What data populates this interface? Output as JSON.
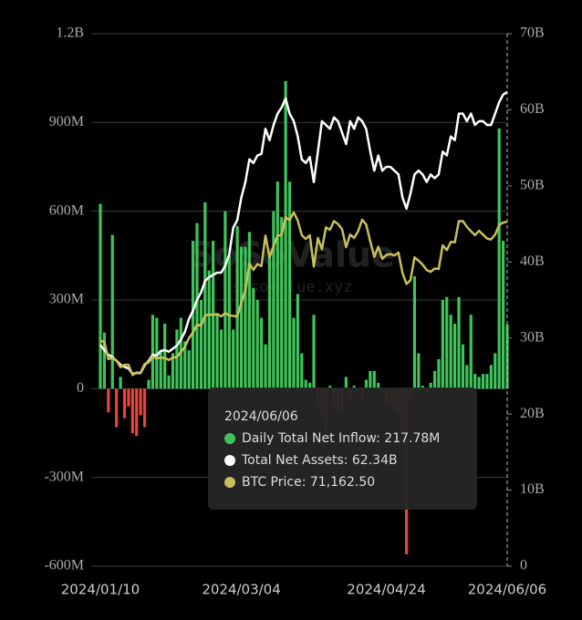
{
  "chart_data": {
    "type": "bar_line",
    "categories": [
      "2024/01/10",
      null,
      null,
      null,
      null,
      null,
      null,
      null,
      null,
      null,
      null,
      null,
      null,
      null,
      null,
      null,
      null,
      null,
      null,
      null,
      null,
      null,
      null,
      null,
      null,
      null,
      null,
      null,
      null,
      null,
      null,
      null,
      null,
      null,
      null,
      "2024/03/04",
      null,
      null,
      null,
      null,
      null,
      null,
      null,
      null,
      null,
      null,
      null,
      null,
      null,
      null,
      null,
      null,
      null,
      null,
      null,
      null,
      null,
      null,
      null,
      null,
      null,
      null,
      null,
      null,
      null,
      null,
      null,
      null,
      null,
      null,
      null,
      "2024/04/24",
      null,
      null,
      null,
      null,
      null,
      null,
      null,
      null,
      null,
      null,
      null,
      null,
      null,
      null,
      null,
      null,
      null,
      null,
      null,
      null,
      null,
      null,
      null,
      null,
      null,
      null,
      null,
      null,
      null,
      "2024/06/06"
    ],
    "ylim": [
      -600,
      1200
    ],
    "yticks": [
      {
        "value": -600,
        "label": "-600M"
      },
      {
        "value": -300,
        "label": "-300M"
      },
      0,
      {
        "value": 300,
        "label": "300M"
      },
      {
        "value": 600,
        "label": "600M"
      },
      {
        "value": 900,
        "label": "900M"
      },
      {
        "value": 1200,
        "label": "1.2B"
      }
    ],
    "y2lim": [
      0,
      70
    ],
    "y2ticks": [
      0,
      {
        "value": 10,
        "label": "10B"
      },
      {
        "value": 20,
        "label": "20B"
      },
      {
        "value": 30,
        "label": "30B"
      },
      {
        "value": 40,
        "label": "40B"
      },
      {
        "value": 50,
        "label": "50B"
      },
      {
        "value": 60,
        "label": "60B"
      },
      {
        "value": 70,
        "label": "70B"
      }
    ],
    "y3lim": [
      0,
      110000
    ],
    "grid": true,
    "series": [
      {
        "name": "Daily Total Net Inflow",
        "type": "bar",
        "axis": "y",
        "color": "#3fc45b",
        "negative_color": "#e8453c",
        "values": [
          625,
          190,
          -80,
          520,
          -130,
          40,
          -100,
          -60,
          -150,
          -160,
          -90,
          -130,
          30,
          250,
          240,
          130,
          220,
          45,
          120,
          200,
          240,
          160,
          130,
          500,
          560,
          300,
          630,
          400,
          500,
          250,
          200,
          600,
          450,
          200,
          550,
          480,
          480,
          530,
          340,
          300,
          240,
          150,
          450,
          600,
          700,
          580,
          1040,
          700,
          240,
          320,
          120,
          30,
          20,
          250,
          -50,
          -100,
          -150,
          10,
          -60,
          -80,
          -70,
          40,
          -30,
          10,
          -20,
          -40,
          30,
          60,
          60,
          20,
          -20,
          -50,
          -40,
          -70,
          -80,
          -180,
          -560,
          -30,
          380,
          120,
          10,
          -20,
          20,
          60,
          100,
          300,
          310,
          250,
          220,
          310,
          150,
          80,
          250,
          50,
          40,
          50,
          50,
          80,
          120,
          880,
          500,
          217.78
        ]
      },
      {
        "name": "Total Net Assets",
        "type": "line",
        "axis": "y2",
        "color": "#ffffff",
        "values": [
          29.1,
          28.4,
          27.8,
          27.5,
          27,
          26.5,
          26.2,
          26,
          25.3,
          25.4,
          25.4,
          26.4,
          27,
          27.8,
          27.7,
          28.3,
          28.4,
          28.2,
          28.6,
          29,
          29.8,
          30.8,
          32.5,
          33.6,
          35,
          36,
          37.5,
          38,
          38.3,
          38.6,
          38.6,
          39.5,
          41,
          44.5,
          45.5,
          48.5,
          50.5,
          53.5,
          53,
          54,
          54.2,
          57.5,
          56,
          58,
          59.5,
          60.3,
          61.5,
          59.5,
          58.5,
          56.5,
          53.5,
          53,
          53.8,
          50.5,
          54.5,
          58.5,
          58,
          57.5,
          59,
          58.5,
          57,
          55.5,
          58.5,
          57.5,
          59,
          58.5,
          57.5,
          54.5,
          52,
          54,
          52,
          52.5,
          52.5,
          52,
          51.5,
          48.5,
          47,
          49,
          51.5,
          52,
          51.5,
          50.5,
          51.5,
          51,
          51.5,
          54.5,
          54,
          56.5,
          56,
          59.5,
          59.5,
          58.5,
          59.5,
          58,
          58.5,
          58.5,
          58,
          58,
          59.5,
          61,
          62,
          62.34
        ]
      },
      {
        "name": "BTC Price",
        "type": "line",
        "axis": "y3",
        "color": "#c8c05a",
        "values": [
          46600,
          46300,
          42800,
          43000,
          42500,
          41100,
          41600,
          41600,
          39500,
          40000,
          40000,
          41800,
          42100,
          43300,
          42900,
          43100,
          43000,
          42600,
          43100,
          43200,
          44300,
          45300,
          47100,
          48300,
          49900,
          49700,
          51800,
          52000,
          51900,
          52100,
          51600,
          52300,
          51800,
          51700,
          51600,
          54500,
          57000,
          62500,
          61200,
          62400,
          62000,
          68300,
          63800,
          66100,
          68300,
          68400,
          72100,
          71500,
          73100,
          71400,
          68400,
          67600,
          68400,
          61900,
          67800,
          65500,
          70000,
          69500,
          71300,
          70700,
          69600,
          65900,
          68500,
          67800,
          69200,
          71600,
          70600,
          67100,
          63900,
          66000,
          63500,
          64300,
          64500,
          64200,
          64800,
          60600,
          58300,
          59100,
          63800,
          63100,
          62300,
          61200,
          60800,
          61500,
          61400,
          66300,
          65300,
          67000,
          66900,
          71300,
          71300,
          70100,
          69200,
          68400,
          69300,
          68500,
          67700,
          67500,
          68500,
          70500,
          71000,
          71162.5
        ]
      }
    ],
    "tooltip": {
      "date": "2024/06/06",
      "rows": [
        "Daily Total Net Inflow: 217.78M",
        "Total Net Assets: 62.34B",
        "BTC Price: 71,162.50"
      ]
    },
    "watermark": {
      "brand": "SoSoValue",
      "site": "sosovalue.xyz"
    }
  }
}
